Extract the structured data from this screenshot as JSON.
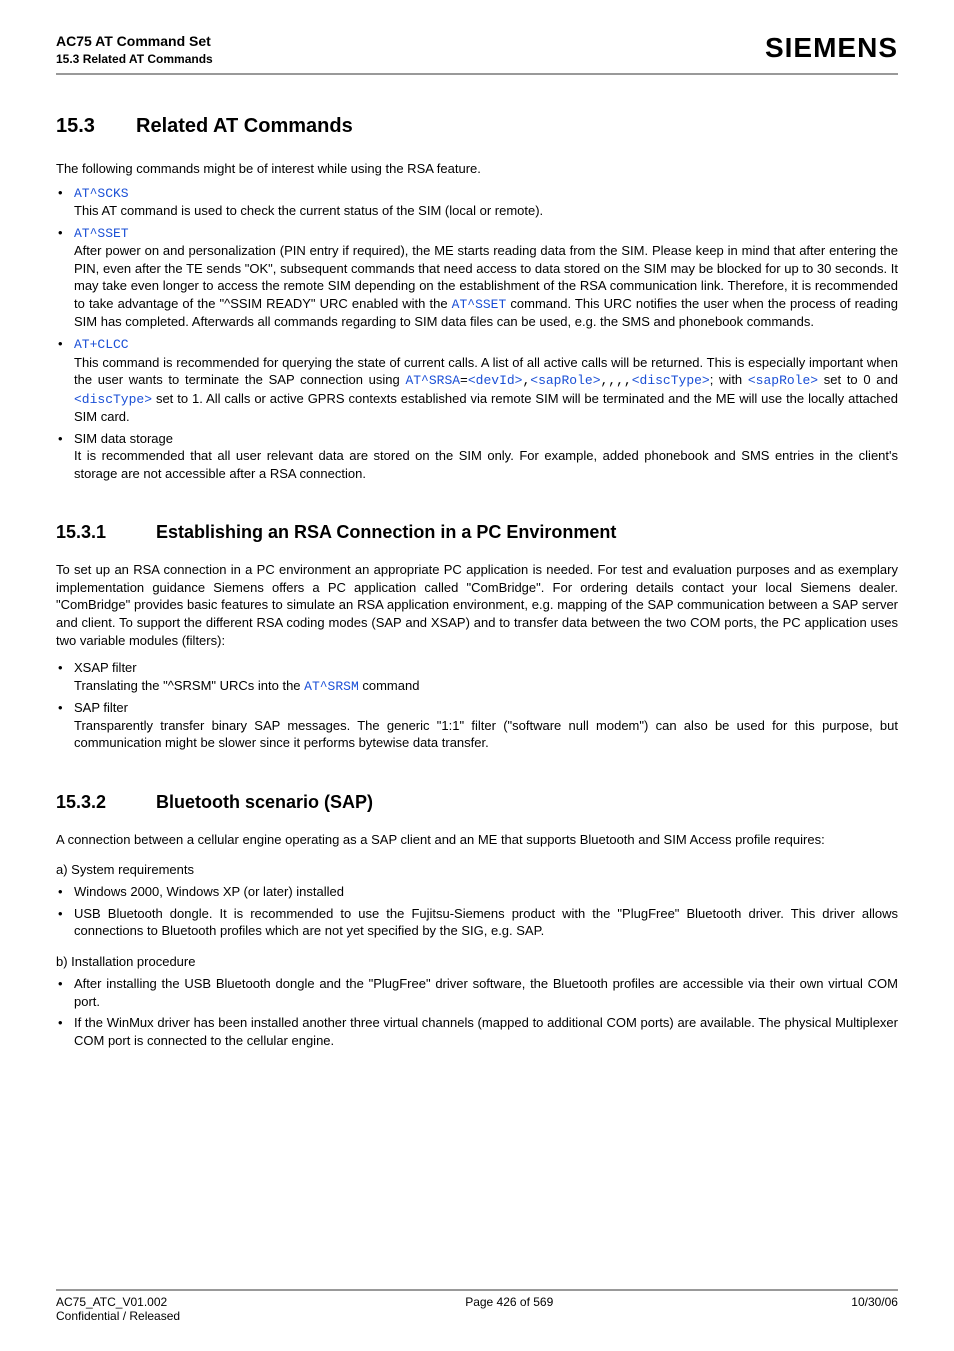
{
  "header": {
    "product_line": "AC75 AT Command Set",
    "section_label": "15.3 Related AT Commands",
    "logo_text": "SIEMENS"
  },
  "section15_3": {
    "number": "15.3",
    "title": "Related AT Commands",
    "intro": "The following commands might be of interest while using the RSA feature.",
    "items": [
      {
        "cmd": "AT^SCKS",
        "desc": "This AT command is used to check the current status of the SIM (local or remote)."
      },
      {
        "cmd": "AT^SSET",
        "desc_pre": "After power on and personalization (PIN entry if required), the ME starts reading data from the SIM. Please keep in mind that after entering the PIN, even after the TE sends \"OK\", subsequent commands that need access to data stored on the SIM may be blocked for up to 30 seconds. It may take even longer to access the remote SIM depending on the establishment of the RSA communication link. Therefore, it is recommended to take advantage of the \"^SSIM READY\" URC enabled with the ",
        "desc_cmd": "AT^SSET",
        "desc_post": " command. This URC notifies the user when the process of reading SIM has completed. Afterwards all commands regarding to SIM data files can be used, e.g. the SMS and phonebook commands."
      },
      {
        "cmd": "AT+CLCC",
        "desc_pre": "This command is recommended for querying the state of current calls. A list of all active calls will be returned. This is especially important when the user wants to terminate the SAP connection using ",
        "srsa": "AT^SRSA",
        "eq": "=",
        "devId": "<devId>",
        "c1": ",",
        "sapRole": "<sapRole>",
        "comma_seq": ",,,,",
        "discType": "<discType>",
        "with": "; with ",
        "sapRole2": "<sapRole>",
        "mid": " set to 0 and ",
        "discType2": "<discType>",
        "desc_post": " set to 1. All calls or active GPRS contexts established via remote SIM will be terminated and the ME will use the locally attached SIM card."
      },
      {
        "plain_title": "SIM data storage",
        "desc": "It is recommended that all user relevant data are stored on the SIM only. For example, added phonebook and SMS entries in the client's storage are not accessible after a RSA connection."
      }
    ]
  },
  "section15_3_1": {
    "number": "15.3.1",
    "title": "Establishing an RSA Connection in a PC Environment",
    "para": "To set up an RSA connection in a PC environment an appropriate PC application is needed. For test and evaluation purposes and as exemplary implementation guidance Siemens offers a PC application called \"ComBridge\". For ordering details contact your local Siemens dealer. \"ComBridge\" provides basic features to simulate an RSA application environment, e.g. mapping of the SAP communication between a SAP server and client. To support the different RSA coding modes (SAP and XSAP) and to transfer data between the two COM ports, the PC application uses two variable modules (filters):",
    "items": [
      {
        "title": "XSAP filter",
        "desc_pre": "Translating the \"^SRSM\" URCs into the ",
        "desc_cmd": "AT^SRSM",
        "desc_post": " command"
      },
      {
        "title": "SAP filter",
        "desc": "Transparently transfer binary SAP messages. The generic \"1:1\" filter (\"software null modem\") can also be used for this purpose, but communication might be slower since it performs bytewise data transfer."
      }
    ]
  },
  "section15_3_2": {
    "number": "15.3.2",
    "title": "Bluetooth scenario (SAP)",
    "para": "A connection between a cellular engine operating as a SAP client and an ME that supports Bluetooth and SIM Access profile requires:",
    "a_label": "a) System requirements",
    "a_items": [
      "Windows 2000, Windows XP (or later) installed",
      "USB Bluetooth dongle. It is recommended to use the Fujitsu-Siemens product with the \"PlugFree\" Bluetooth driver. This driver allows connections to Bluetooth profiles which are not yet specified by the SIG, e.g. SAP."
    ],
    "b_label": "b) Installation procedure",
    "b_items": [
      "After installing the USB Bluetooth dongle and the \"PlugFree\" driver software, the Bluetooth profiles are accessible via their own virtual COM port.",
      "If the WinMux driver has been installed another three virtual channels (mapped to additional COM ports) are available. The physical Multiplexer COM port is connected to the cellular engine."
    ]
  },
  "footer": {
    "left1": "AC75_ATC_V01.002",
    "left2": "Confidential / Released",
    "center": "Page 426 of 569",
    "right": "10/30/06"
  }
}
